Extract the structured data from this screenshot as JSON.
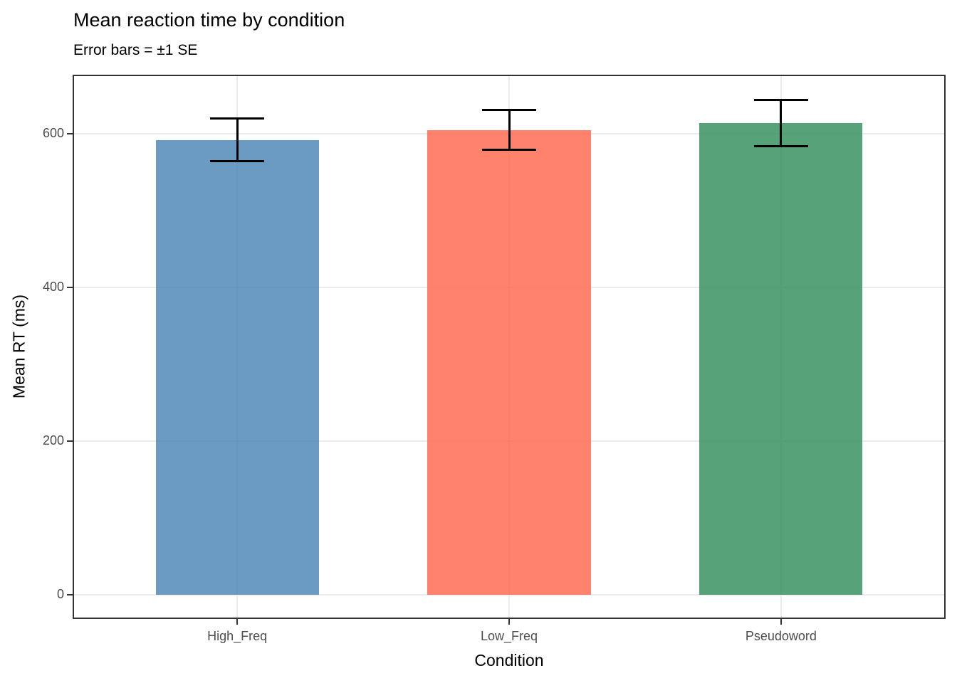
{
  "chart_data": {
    "type": "bar",
    "title": "Mean reaction time by condition",
    "subtitle": "Error bars = ±1 SE",
    "xlabel": "Condition",
    "ylabel": "Mean RT (ms)",
    "categories": [
      "High_Freq",
      "Low_Freq",
      "Pseudoword"
    ],
    "values": [
      592,
      605,
      614
    ],
    "errors_se": [
      28,
      26,
      30
    ],
    "yticks": [
      0,
      200,
      400,
      600
    ],
    "ytick_labels": [
      "0",
      "200",
      "400",
      "600"
    ],
    "ylim": [
      -30,
      675
    ],
    "x_range_units": [
      0.4,
      3.6
    ],
    "bar_width_units": 0.6,
    "cap_width_units": 0.2,
    "bar_colors_base": [
      "#4682B4",
      "#FF6347",
      "#2E8B57"
    ],
    "bar_color_names": [
      "steelblue",
      "tomato",
      "seagreen"
    ],
    "bar_alpha": 0.8,
    "grid": "major horizontal and vertical at category centers",
    "legend_position": "none",
    "colors": {
      "gridline": "#ebebeb",
      "panel_border": "#333333",
      "tick_mark": "#333333",
      "tick_label": "#4d4d4d",
      "error_bar": "#000000",
      "background": "#ffffff"
    }
  }
}
